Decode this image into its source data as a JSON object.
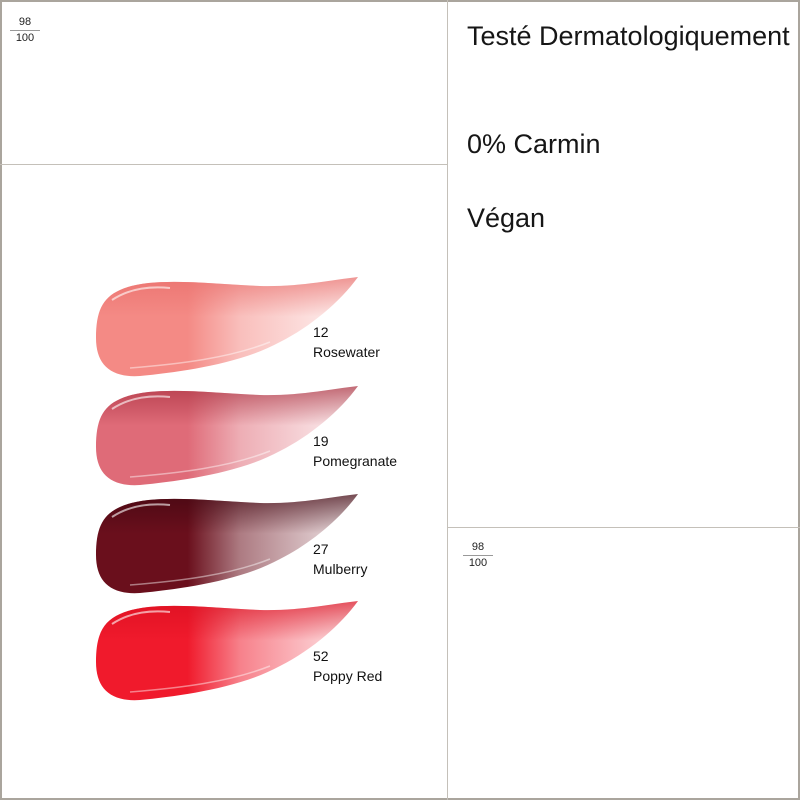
{
  "badges": [
    {
      "score": "98",
      "total": "100"
    },
    {
      "score": "98",
      "total": "100"
    }
  ],
  "claims": [
    "Testé Dermatologiquement",
    "0% Carmin",
    "Végan"
  ],
  "shades": [
    {
      "number": "12",
      "name": "Rosewater",
      "color": "#f48a85",
      "deep": "#e86d6a"
    },
    {
      "number": "19",
      "name": "Pomegranate",
      "color": "#df6b78",
      "deep": "#a8303f"
    },
    {
      "number": "27",
      "name": "Mulberry",
      "color": "#6a0f1c",
      "deep": "#3f0610"
    },
    {
      "number": "52",
      "name": "Poppy Red",
      "color": "#f01a2c",
      "deep": "#d90f20"
    }
  ]
}
